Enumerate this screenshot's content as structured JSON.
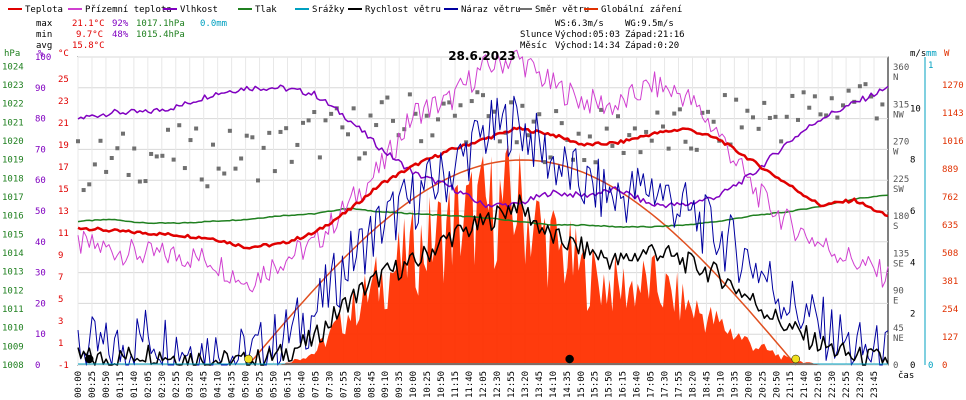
{
  "chart_data": {
    "type": "line",
    "title": "28.6.2023",
    "legend": [
      {
        "name": "Teplota",
        "color": "#e00000"
      },
      {
        "name": "Přízemní teplota",
        "color": "#d040d0"
      },
      {
        "name": "Vlhkost",
        "color": "#8000c0"
      },
      {
        "name": "Tlak",
        "color": "#208020"
      },
      {
        "name": "Srážky",
        "color": "#00a0c0"
      },
      {
        "name": "Rychlost větru",
        "color": "#000000"
      },
      {
        "name": "Náraz větru",
        "color": "#0000a0"
      },
      {
        "name": "Směr větru",
        "color": "#707070"
      },
      {
        "name": "Globální záření",
        "color": "#e03000"
      }
    ],
    "stats": {
      "max_label": "max",
      "min_label": "min",
      "avg_label": "avg",
      "max_temp": "21.1°C",
      "max_hum": "92%",
      "max_press": "1017.1hPa",
      "max_rain": "0.0mm",
      "min_temp": "9.7°C",
      "min_hum": "48%",
      "min_press": "1015.4hPa",
      "avg_temp": "15.8°C",
      "ws": "WS:6.3m/s",
      "wg": "WG:9.5m/s",
      "sun_label": "Slunce",
      "sun_rise": "Východ:05:03",
      "sun_set": "Západ:21:16",
      "moon_label": "Měsíc",
      "moon_rise": "Východ:14:34",
      "moon_set": "Západ:0:20"
    },
    "axes": {
      "hpa_label": "hPa",
      "hpa_ticks": [
        "1024",
        "1023",
        "1022",
        "1021",
        "1020",
        "1019",
        "1018",
        "1017",
        "1016",
        "1015",
        "1014",
        "1013",
        "1012",
        "1011",
        "1010",
        "1009",
        "1008"
      ],
      "pct_label": "%",
      "pct_ticks": [
        "100",
        "90",
        "80",
        "70",
        "60",
        "50",
        "40",
        "30",
        "20",
        "10",
        "0"
      ],
      "temp_label": "°C",
      "temp_ticks": [
        "25",
        "23",
        "21",
        "19",
        "17",
        "15",
        "13",
        "11",
        "9",
        "7",
        "5",
        "3",
        "1",
        "-1"
      ],
      "dir_ticks": [
        "360\nN",
        "315\nNW",
        "270\nW",
        "225\nSW",
        "180\nS",
        "135\nSE",
        "90\nE",
        "45\nNE",
        "0"
      ],
      "ms_label": "m/s",
      "ms_ticks": [
        "10",
        "8",
        "6",
        "4",
        "2",
        "0"
      ],
      "mm_label": "mm",
      "mm_ticks": [
        "1",
        "0"
      ],
      "w_label": "W",
      "w_ticks": [
        "1270",
        "1143",
        "1016",
        "889",
        "762",
        "635",
        "508",
        "381",
        "254",
        "127",
        "0"
      ],
      "time_label": "čas",
      "time_ticks": [
        "00:00",
        "00:25",
        "00:50",
        "01:15",
        "01:40",
        "02:05",
        "02:30",
        "02:55",
        "03:20",
        "03:45",
        "04:10",
        "04:35",
        "05:00",
        "05:25",
        "05:50",
        "06:15",
        "06:40",
        "07:05",
        "07:30",
        "07:55",
        "08:20",
        "08:45",
        "09:10",
        "09:35",
        "10:00",
        "10:25",
        "10:50",
        "11:15",
        "11:40",
        "12:05",
        "12:30",
        "12:55",
        "13:20",
        "13:45",
        "14:10",
        "14:35",
        "15:00",
        "15:25",
        "15:50",
        "16:15",
        "16:40",
        "17:05",
        "17:30",
        "17:55",
        "18:20",
        "18:45",
        "19:10",
        "19:35",
        "20:00",
        "20:25",
        "20:50",
        "21:15",
        "21:40",
        "22:05",
        "22:30",
        "22:55",
        "23:20",
        "23:45"
      ]
    },
    "series_hourly_x": [
      0,
      1,
      2,
      3,
      4,
      5,
      6,
      7,
      8,
      9,
      10,
      11,
      12,
      13,
      14,
      15,
      16,
      17,
      18,
      19,
      20,
      21,
      22,
      23,
      24
    ],
    "series": [
      {
        "name": "Teplota",
        "unit": "°C",
        "values": [
          11.5,
          11.2,
          11.0,
          10.8,
          10.5,
          9.7,
          10.0,
          11.0,
          13.0,
          15.5,
          17.2,
          18.5,
          19.5,
          20.5,
          20.0,
          19.0,
          19.2,
          20.0,
          20.5,
          19.5,
          17.5,
          15.5,
          13.5,
          14.0,
          12.5
        ]
      },
      {
        "name": "Přízemní teplota",
        "unit": "°C",
        "values": [
          10.0,
          9.5,
          9.0,
          9.0,
          8.5,
          6.5,
          8.5,
          10.0,
          13.5,
          17.0,
          22.0,
          23.0,
          26.0,
          27.0,
          24.5,
          23.0,
          22.5,
          24.5,
          23.5,
          20.0,
          15.0,
          12.0,
          10.0,
          8.5,
          7.0
        ]
      },
      {
        "name": "Vlhkost",
        "unit": "%",
        "values": [
          80,
          82,
          82,
          84,
          88,
          90,
          90,
          88,
          80,
          70,
          62,
          58,
          52,
          52,
          56,
          55,
          57,
          52,
          52,
          55,
          62,
          72,
          80,
          85,
          90
        ]
      },
      {
        "name": "Tlak",
        "unit": "hPa",
        "values": [
          1015.7,
          1015.8,
          1015.6,
          1015.6,
          1015.7,
          1015.8,
          1016.0,
          1016.1,
          1016.4,
          1016.2,
          1016.1,
          1016.0,
          1015.9,
          1015.7,
          1015.5,
          1015.5,
          1015.4,
          1015.4,
          1015.5,
          1015.7,
          1016.0,
          1016.2,
          1016.5,
          1016.9,
          1017.1
        ]
      },
      {
        "name": "Rychlost větru",
        "unit": "m/s",
        "values": [
          0.3,
          0.2,
          0.5,
          0.3,
          0.2,
          0.1,
          0.4,
          1.0,
          2.5,
          3.5,
          4.0,
          5.0,
          5.5,
          6.3,
          5.0,
          4.5,
          4.0,
          4.5,
          4.0,
          3.5,
          2.5,
          1.5,
          0.8,
          0.3,
          0.2
        ]
      },
      {
        "name": "Náraz větru",
        "unit": "m/s",
        "values": [
          0.8,
          0.5,
          1.2,
          0.8,
          0.5,
          0.3,
          1.0,
          2.0,
          4.0,
          5.5,
          6.5,
          7.5,
          9.0,
          9.5,
          8.0,
          7.0,
          6.5,
          7.0,
          6.0,
          5.0,
          4.0,
          2.5,
          1.5,
          0.6,
          0.3
        ]
      },
      {
        "name": "Globální záření",
        "unit": "W",
        "values": [
          0,
          0,
          0,
          0,
          0,
          0,
          0,
          60,
          250,
          420,
          560,
          680,
          760,
          800,
          600,
          450,
          380,
          400,
          300,
          200,
          100,
          30,
          0,
          0,
          0
        ]
      }
    ],
    "wind_direction": {
      "unit": "°",
      "values": [
        240,
        245,
        255,
        255,
        250,
        255,
        260,
        280,
        280,
        290,
        300,
        300,
        305,
        280,
        280,
        270,
        280,
        280,
        275,
        290,
        300,
        300,
        310,
        325,
        325
      ]
    },
    "clear_sky_radiation": {
      "unit": "W",
      "peak": 930,
      "start": "05:03",
      "end": "21:16"
    },
    "markers": [
      {
        "name": "moonset",
        "time": "0:20"
      },
      {
        "name": "sunrise",
        "time": "05:03"
      },
      {
        "name": "moonrise",
        "time": "14:34"
      },
      {
        "name": "sunset",
        "time": "21:16"
      }
    ]
  }
}
